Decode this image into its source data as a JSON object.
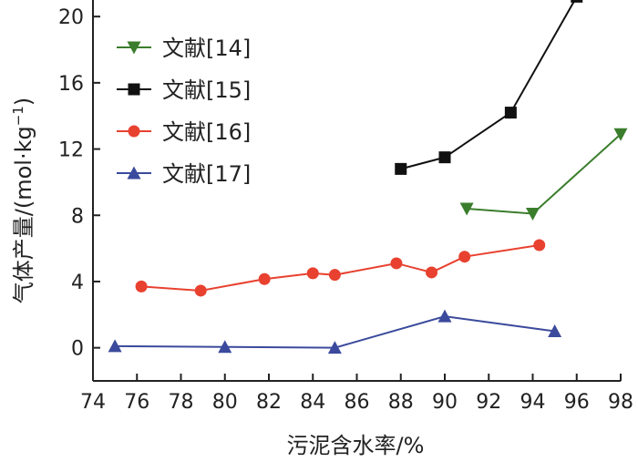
{
  "chart_data": {
    "type": "line",
    "xlabel": "污泥含水率/%",
    "ylabel_main": "气体产量/(mol·kg",
    "ylabel_sup": "−1",
    "ylabel_close": ")",
    "xlim": [
      74,
      98
    ],
    "ylim": [
      -2,
      21
    ],
    "xticks": [
      "74",
      "76",
      "78",
      "80",
      "82",
      "84",
      "86",
      "88",
      "90",
      "92",
      "94",
      "96",
      "98"
    ],
    "yticks": [
      "0",
      "4",
      "8",
      "12",
      "16",
      "20"
    ],
    "grid": false,
    "legend_position": "top-left",
    "series": [
      {
        "name": "文献[14]",
        "color": "#3a7d2c",
        "marker": "triangle-down",
        "x": [
          91,
          94,
          98
        ],
        "y": [
          8.4,
          8.1,
          12.9
        ]
      },
      {
        "name": "文献[15]",
        "color": "#111111",
        "marker": "square",
        "x": [
          88,
          90,
          93,
          96
        ],
        "y": [
          10.8,
          11.5,
          14.2,
          21.2
        ]
      },
      {
        "name": "文献[16]",
        "color": "#e8412f",
        "marker": "circle",
        "x": [
          76.2,
          78.9,
          81.8,
          84.0,
          85.0,
          87.8,
          89.4,
          90.9,
          94.3
        ],
        "y": [
          3.7,
          3.45,
          4.15,
          4.5,
          4.4,
          5.1,
          4.55,
          5.5,
          6.2
        ]
      },
      {
        "name": "文献[17]",
        "color": "#3b4a9c",
        "marker": "triangle-up",
        "x": [
          75,
          80,
          85,
          90,
          95
        ],
        "y": [
          0.1,
          0.05,
          0.0,
          1.9,
          1.0
        ]
      }
    ]
  }
}
